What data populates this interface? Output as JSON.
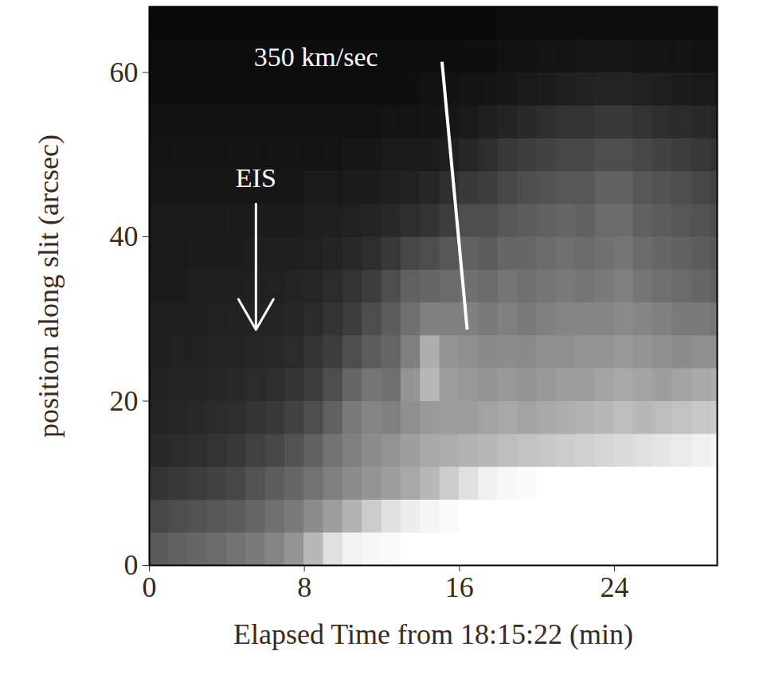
{
  "chart_data": {
    "type": "heatmap",
    "xlabel": "Elapsed Time from 18:15:22 (min)",
    "ylabel": "position along slit (arcsec)",
    "xlim": [
      0,
      29.3
    ],
    "xticks": [
      0,
      8,
      16,
      24
    ],
    "ylim": [
      0,
      68
    ],
    "yticks": [
      0,
      20,
      40,
      60
    ],
    "zlim": [
      0,
      1
    ],
    "x_edges": [
      0,
      1,
      2,
      3,
      4,
      5,
      6,
      7,
      8,
      9,
      10,
      11,
      12,
      13,
      14,
      15,
      16,
      17,
      18,
      19,
      20,
      21,
      22,
      23,
      24,
      25,
      26,
      27,
      28,
      29,
      30
    ],
    "y_edges": [
      0,
      4,
      8,
      12,
      16,
      20,
      24,
      28,
      32,
      36,
      40,
      44,
      48,
      52,
      56,
      60,
      64,
      68
    ],
    "z": [
      [
        0.35,
        0.38,
        0.4,
        0.42,
        0.45,
        0.48,
        0.52,
        0.58,
        0.72,
        0.88,
        0.95,
        0.97,
        0.98,
        1,
        1,
        1,
        1,
        1,
        1,
        1,
        1,
        1,
        1,
        1,
        1,
        1,
        1,
        1,
        1,
        1
      ],
      [
        0.28,
        0.3,
        0.32,
        0.34,
        0.36,
        0.4,
        0.44,
        0.48,
        0.55,
        0.62,
        0.7,
        0.8,
        0.88,
        0.93,
        0.96,
        0.98,
        1,
        1,
        1,
        1,
        1,
        1,
        1,
        1,
        1,
        1,
        1,
        1,
        1,
        1
      ],
      [
        0.2,
        0.22,
        0.24,
        0.26,
        0.28,
        0.32,
        0.36,
        0.4,
        0.45,
        0.5,
        0.55,
        0.58,
        0.62,
        0.66,
        0.72,
        0.8,
        0.88,
        0.94,
        0.97,
        0.98,
        1,
        1,
        1,
        1,
        1,
        1,
        1,
        1,
        1,
        1
      ],
      [
        0.16,
        0.17,
        0.18,
        0.2,
        0.22,
        0.25,
        0.28,
        0.32,
        0.38,
        0.45,
        0.5,
        0.55,
        0.58,
        0.62,
        0.66,
        0.68,
        0.7,
        0.72,
        0.74,
        0.76,
        0.78,
        0.8,
        0.82,
        0.84,
        0.86,
        0.88,
        0.9,
        0.92,
        0.94,
        0.96
      ],
      [
        0.14,
        0.15,
        0.16,
        0.17,
        0.18,
        0.2,
        0.22,
        0.26,
        0.3,
        0.38,
        0.48,
        0.52,
        0.5,
        0.56,
        0.6,
        0.62,
        0.62,
        0.64,
        0.66,
        0.64,
        0.66,
        0.68,
        0.7,
        0.72,
        0.74,
        0.72,
        0.74,
        0.76,
        0.78,
        0.8
      ],
      [
        0.13,
        0.14,
        0.14,
        0.15,
        0.16,
        0.17,
        0.18,
        0.2,
        0.24,
        0.3,
        0.4,
        0.46,
        0.44,
        0.58,
        0.72,
        0.62,
        0.6,
        0.58,
        0.6,
        0.58,
        0.6,
        0.62,
        0.62,
        0.64,
        0.66,
        0.64,
        0.62,
        0.64,
        0.66,
        0.68
      ],
      [
        0.12,
        0.13,
        0.13,
        0.14,
        0.14,
        0.15,
        0.16,
        0.17,
        0.2,
        0.24,
        0.3,
        0.36,
        0.4,
        0.5,
        0.68,
        0.58,
        0.56,
        0.54,
        0.55,
        0.54,
        0.56,
        0.56,
        0.58,
        0.58,
        0.6,
        0.58,
        0.56,
        0.55,
        0.56,
        0.56
      ],
      [
        0.12,
        0.12,
        0.12,
        0.13,
        0.13,
        0.14,
        0.14,
        0.15,
        0.17,
        0.2,
        0.24,
        0.3,
        0.36,
        0.44,
        0.5,
        0.5,
        0.5,
        0.48,
        0.5,
        0.48,
        0.5,
        0.52,
        0.52,
        0.52,
        0.54,
        0.52,
        0.5,
        0.48,
        0.48,
        0.46
      ],
      [
        0.11,
        0.11,
        0.12,
        0.12,
        0.12,
        0.13,
        0.13,
        0.14,
        0.15,
        0.17,
        0.2,
        0.24,
        0.3,
        0.38,
        0.4,
        0.42,
        0.44,
        0.42,
        0.46,
        0.44,
        0.46,
        0.48,
        0.46,
        0.48,
        0.5,
        0.46,
        0.44,
        0.42,
        0.4,
        0.38
      ],
      [
        0.1,
        0.1,
        0.11,
        0.11,
        0.11,
        0.12,
        0.12,
        0.12,
        0.13,
        0.14,
        0.16,
        0.18,
        0.22,
        0.28,
        0.3,
        0.34,
        0.38,
        0.36,
        0.4,
        0.4,
        0.42,
        0.44,
        0.42,
        0.44,
        0.46,
        0.42,
        0.4,
        0.38,
        0.36,
        0.34
      ],
      [
        0.1,
        0.1,
        0.1,
        0.1,
        0.11,
        0.11,
        0.11,
        0.11,
        0.12,
        0.12,
        0.13,
        0.14,
        0.16,
        0.18,
        0.2,
        0.24,
        0.3,
        0.3,
        0.34,
        0.36,
        0.38,
        0.4,
        0.38,
        0.42,
        0.42,
        0.38,
        0.36,
        0.34,
        0.32,
        0.3
      ],
      [
        0.09,
        0.09,
        0.09,
        0.09,
        0.09,
        0.09,
        0.09,
        0.09,
        0.1,
        0.1,
        0.11,
        0.11,
        0.12,
        0.13,
        0.15,
        0.18,
        0.22,
        0.24,
        0.28,
        0.3,
        0.32,
        0.34,
        0.34,
        0.38,
        0.38,
        0.34,
        0.32,
        0.3,
        0.28,
        0.26
      ],
      [
        0.08,
        0.08,
        0.08,
        0.08,
        0.08,
        0.08,
        0.08,
        0.08,
        0.08,
        0.08,
        0.09,
        0.09,
        0.1,
        0.1,
        0.11,
        0.12,
        0.15,
        0.18,
        0.22,
        0.24,
        0.26,
        0.28,
        0.28,
        0.3,
        0.3,
        0.28,
        0.26,
        0.24,
        0.22,
        0.2
      ],
      [
        0.07,
        0.07,
        0.07,
        0.07,
        0.07,
        0.07,
        0.07,
        0.07,
        0.07,
        0.07,
        0.07,
        0.07,
        0.08,
        0.08,
        0.08,
        0.09,
        0.1,
        0.12,
        0.14,
        0.16,
        0.18,
        0.2,
        0.2,
        0.22,
        0.22,
        0.2,
        0.18,
        0.17,
        0.16,
        0.15
      ],
      [
        0.06,
        0.06,
        0.06,
        0.06,
        0.06,
        0.06,
        0.06,
        0.06,
        0.06,
        0.06,
        0.06,
        0.06,
        0.06,
        0.06,
        0.07,
        0.07,
        0.08,
        0.08,
        0.09,
        0.1,
        0.11,
        0.12,
        0.13,
        0.14,
        0.14,
        0.13,
        0.12,
        0.11,
        0.1,
        0.1
      ],
      [
        0.05,
        0.05,
        0.05,
        0.05,
        0.05,
        0.05,
        0.05,
        0.05,
        0.05,
        0.05,
        0.05,
        0.05,
        0.05,
        0.05,
        0.05,
        0.05,
        0.06,
        0.06,
        0.07,
        0.07,
        0.08,
        0.08,
        0.09,
        0.09,
        0.09,
        0.08,
        0.08,
        0.08,
        0.07,
        0.07
      ],
      [
        0.04,
        0.04,
        0.04,
        0.04,
        0.04,
        0.04,
        0.04,
        0.04,
        0.04,
        0.04,
        0.04,
        0.04,
        0.04,
        0.04,
        0.04,
        0.04,
        0.04,
        0.04,
        0.05,
        0.05,
        0.05,
        0.05,
        0.05,
        0.05,
        0.05,
        0.05,
        0.05,
        0.05,
        0.05,
        0.05
      ]
    ],
    "annotations": [
      {
        "text": "350 km/sec",
        "x": 8.6,
        "y": 61.8,
        "line": {
          "x1": 15.1,
          "y1": 61.3,
          "x2": 16.4,
          "y2": 28.7
        }
      },
      {
        "text": "EIS",
        "x": 5.5,
        "y": 47.1,
        "arrow": {
          "x1": 5.5,
          "y1": 44,
          "x2": 5.5,
          "y2": 28.7
        }
      }
    ]
  }
}
